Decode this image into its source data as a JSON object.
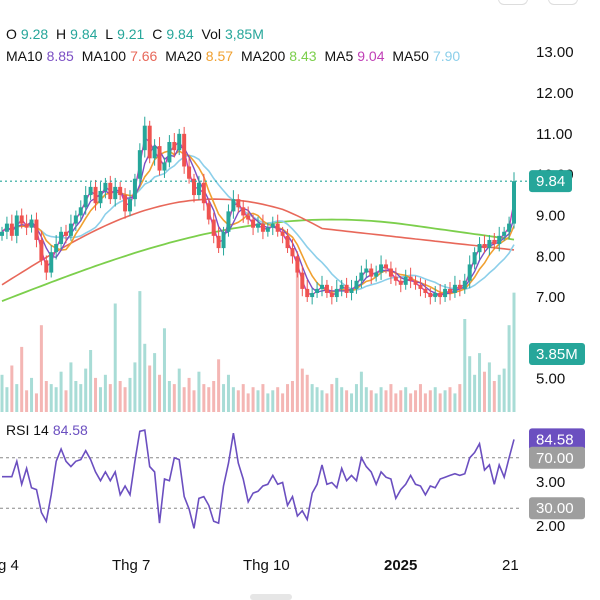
{
  "ohlc": {
    "o_label": "O",
    "o": "9.28",
    "h_label": "H",
    "h": "9.84",
    "l_label": "L",
    "l": "9.21",
    "c_label": "C",
    "c": "9.84",
    "vol_label": "Vol",
    "vol": "3,85M"
  },
  "ma_legend": [
    {
      "name": "MA10",
      "value": "8.85",
      "color": "#7b4fc4"
    },
    {
      "name": "MA100",
      "value": "7.66",
      "color": "#e8685a"
    },
    {
      "name": "MA20",
      "value": "8.57",
      "color": "#f0a030"
    },
    {
      "name": "MA200",
      "value": "8.43",
      "color": "#7ccf4c"
    },
    {
      "name": "MA5",
      "value": "9.04",
      "color": "#c03fb6"
    },
    {
      "name": "MA50",
      "value": "7.90",
      "color": "#8ccfea"
    }
  ],
  "price_tag": "9.84",
  "volume_tag": "3.85M",
  "rsi": {
    "label": "RSI 14",
    "value": "84.58",
    "tag": "84.58",
    "upper": "70.00",
    "lower": "30.00"
  },
  "colors": {
    "up": "#26a69a",
    "down": "#ef5350",
    "rsi": "#6b4fc0",
    "grid": "#888888",
    "purple": "#6b4fc0",
    "gray_tag": "#9e9e9e"
  },
  "chart_data": {
    "type": "candlestick",
    "price_axis_ticks": [
      "13.00",
      "12.00",
      "11.00",
      "10.00",
      "9.00",
      "8.00",
      "7.00",
      "5.00"
    ],
    "rsi_axis_ticks": [
      "3.00",
      "2.00"
    ],
    "x_ticks": [
      "g 4",
      "Thg 7",
      "Thg 10",
      "2025",
      "21"
    ],
    "close_series": [
      8.6,
      8.8,
      8.5,
      9.0,
      8.8,
      8.7,
      8.9,
      8.4,
      7.9,
      7.6,
      8.1,
      8.3,
      8.6,
      8.5,
      8.8,
      9.0,
      9.2,
      9.5,
      9.7,
      9.3,
      9.6,
      9.8,
      9.4,
      9.7,
      9.5,
      9.1,
      9.4,
      9.9,
      10.6,
      11.2,
      10.4,
      10.7,
      10.1,
      10.3,
      10.8,
      10.6,
      11.0,
      10.2,
      9.9,
      9.5,
      9.8,
      9.3,
      8.9,
      8.5,
      8.2,
      8.6,
      9.1,
      9.4,
      9.2,
      9.0,
      8.9,
      8.7,
      8.8,
      8.6,
      8.7,
      8.8,
      8.6,
      8.5,
      8.2,
      8.0,
      7.6,
      7.2,
      7.0,
      7.1,
      7.2,
      7.3,
      7.1,
      7.0,
      7.2,
      7.3,
      7.1,
      7.2,
      7.4,
      7.6,
      7.7,
      7.5,
      7.6,
      7.8,
      7.7,
      7.5,
      7.4,
      7.3,
      7.5,
      7.4,
      7.3,
      7.2,
      7.1,
      7.0,
      7.1,
      7.0,
      7.2,
      7.1,
      7.3,
      7.2,
      7.4,
      7.8,
      8.1,
      8.3,
      8.2,
      8.4,
      8.3,
      8.5,
      8.6,
      8.8,
      9.84
    ],
    "volume_series": [
      1.2,
      0.8,
      1.5,
      0.9,
      2.1,
      0.7,
      1.1,
      0.6,
      2.8,
      1.0,
      0.9,
      0.8,
      1.3,
      0.7,
      1.6,
      1.0,
      0.9,
      1.4,
      2.0,
      1.1,
      0.8,
      1.2,
      0.9,
      3.5,
      1.0,
      0.8,
      1.1,
      1.6,
      3.9,
      2.2,
      1.5,
      1.9,
      1.2,
      2.7,
      1.0,
      0.9,
      1.4,
      0.8,
      1.1,
      0.7,
      1.3,
      0.9,
      0.8,
      1.0,
      1.7,
      0.9,
      1.2,
      0.8,
      0.7,
      0.9,
      0.6,
      0.8,
      0.7,
      0.9,
      0.6,
      0.7,
      0.8,
      0.6,
      0.9,
      1.0,
      4.8,
      1.4,
      1.2,
      0.9,
      0.8,
      0.7,
      0.6,
      0.9,
      1.1,
      0.8,
      0.7,
      0.6,
      0.9,
      1.3,
      0.8,
      0.7,
      0.6,
      0.8,
      0.7,
      0.9,
      0.6,
      0.7,
      0.8,
      0.6,
      0.7,
      0.9,
      0.6,
      0.7,
      0.8,
      0.6,
      0.7,
      0.8,
      0.6,
      0.9,
      3.0,
      1.8,
      1.2,
      1.9,
      1.3,
      1.6,
      1.0,
      1.2,
      1.4,
      2.8,
      3.85
    ],
    "ylim": [
      4.6,
      13.3
    ]
  }
}
